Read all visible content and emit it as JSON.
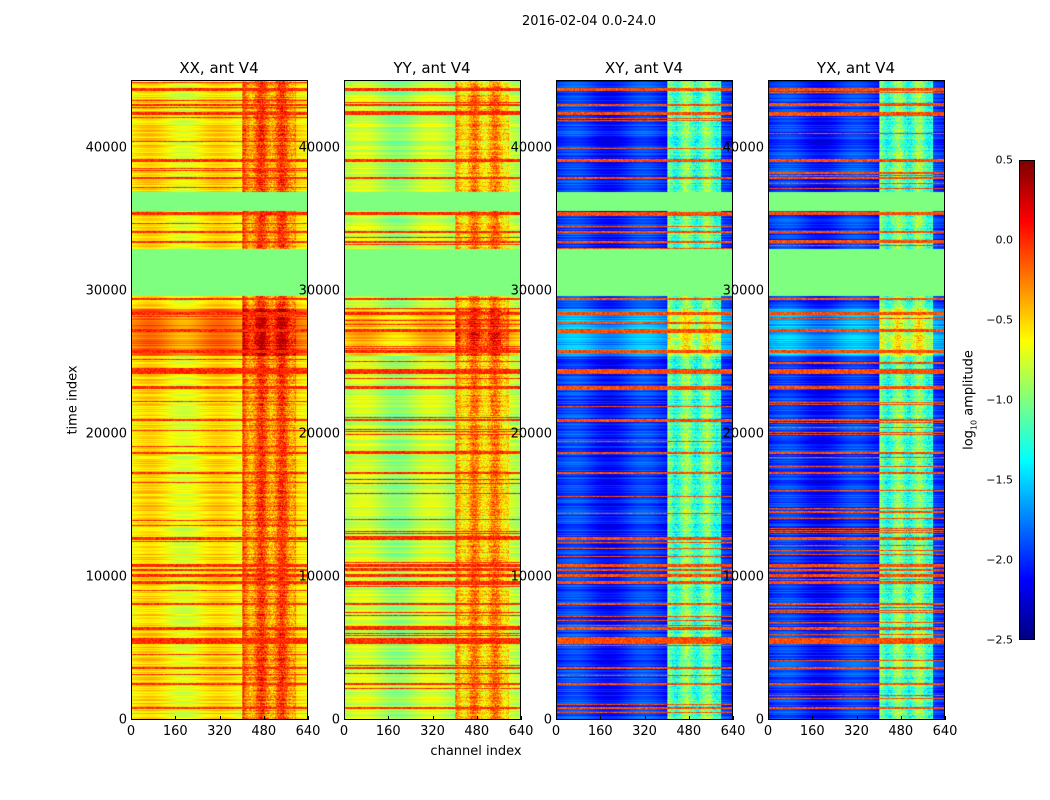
{
  "chart_data": {
    "type": "heatmap",
    "title": "2016-02-04 0.0-24.0",
    "xlabel": "channel index",
    "ylabel": "time index",
    "xlim": [
      0,
      640
    ],
    "ylim": [
      0,
      44760
    ],
    "xticks": [
      "0",
      "160",
      "320",
      "480",
      "640"
    ],
    "yticks": [
      "0",
      "10000",
      "20000",
      "30000",
      "40000"
    ],
    "colormap": "jet",
    "colorbar": {
      "label": "log10 amplitude",
      "label_main": "log",
      "label_sub": "10",
      "label_rest": " amplitude",
      "range": [
        -2.5,
        0.5
      ],
      "ticks": [
        "0.5",
        "0.0",
        "−0.5",
        "−1.0",
        "−1.5",
        "−2.0",
        "−2.5"
      ]
    },
    "flagged_time_ranges": [
      [
        29700,
        33000
      ],
      [
        35700,
        37000
      ]
    ],
    "flag_value": -1.0,
    "rfi_channel_range": [
      400,
      600
    ],
    "panels": [
      {
        "title": "XX, ant V4",
        "base_level": -0.6,
        "rfi_level": -0.2,
        "band_level": 0.0
      },
      {
        "title": "YY, ant V4",
        "base_level": -0.85,
        "rfi_level": -0.4,
        "band_level": 0.0
      },
      {
        "title": "XY, ant V4",
        "base_level": -2.0,
        "rfi_level": -1.1,
        "band_level": 0.0
      },
      {
        "title": "YX, ant V4",
        "base_level": -2.0,
        "rfi_level": -1.1,
        "band_level": 0.0
      }
    ],
    "bright_time_bands": [
      800,
      2500,
      3600,
      5400,
      5600,
      6400,
      8100,
      9600,
      10100,
      10500,
      10800,
      12700,
      17300,
      18700,
      21000,
      23300,
      24300,
      24500,
      25800,
      27300,
      28500,
      29500,
      33500,
      34200,
      35500,
      38000,
      39200,
      42500,
      43100,
      44200
    ]
  }
}
